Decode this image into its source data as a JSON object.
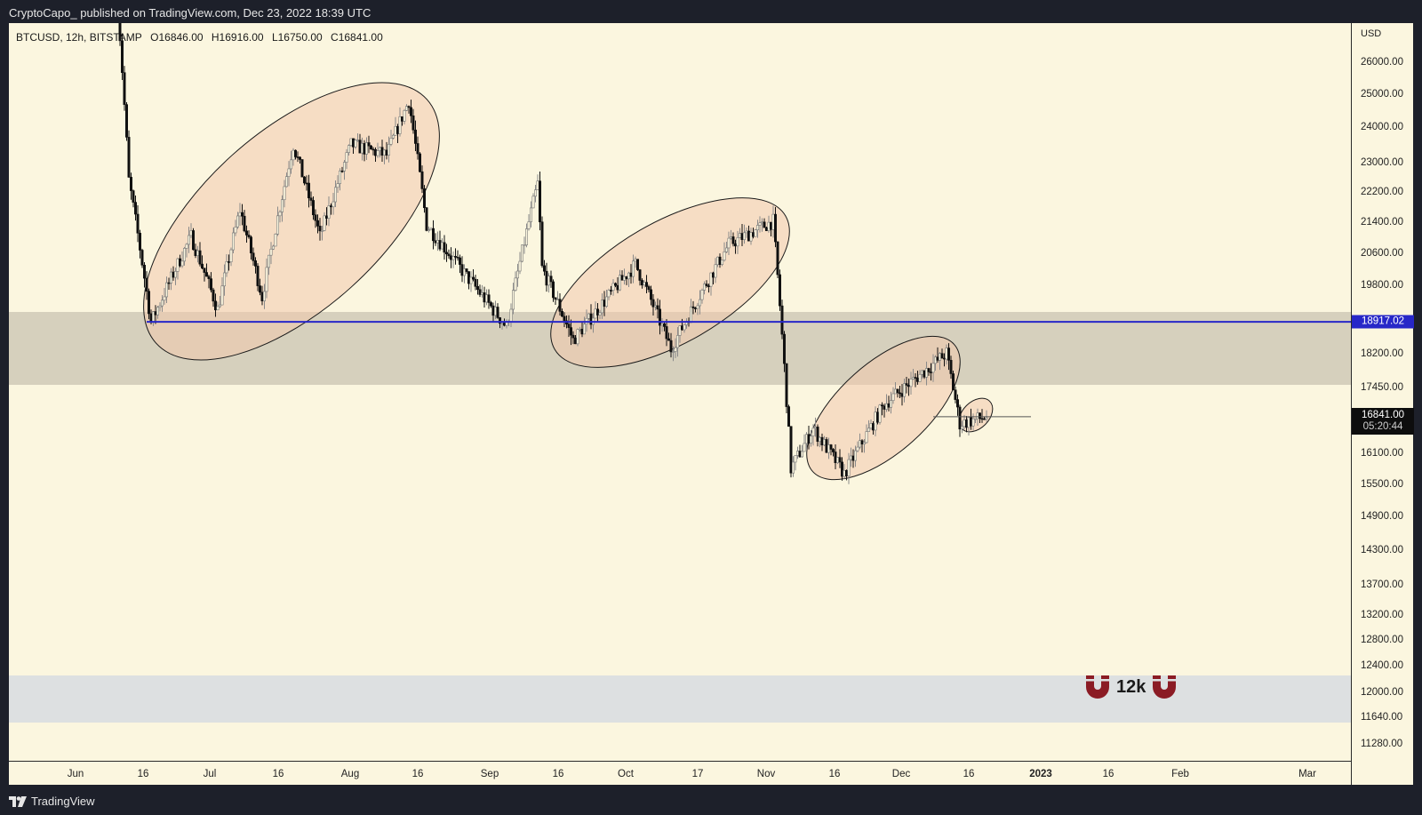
{
  "header": {
    "caption": "CryptoCapo_ published on TradingView.com, Dec 23, 2022 18:39 UTC"
  },
  "legend": {
    "symbol": "BTCUSD, 12h, BITSTAMP",
    "open": "O16846.00",
    "high": "H16916.00",
    "low": "L16750.00",
    "close": "C16841.00"
  },
  "price_axis": {
    "currency": "USD",
    "level_badge": "18917.02",
    "last_price": "16841.00",
    "countdown": "05:20:44"
  },
  "annotation": {
    "target_label": "12k",
    "icon": "magnet-icon"
  },
  "footer": {
    "brand": "TradingView"
  },
  "colors": {
    "background": "#fbf6df",
    "frame": "#1d202a",
    "level_line": "#2727c8",
    "support_zone": "#d6d0bd",
    "target_zone": "#dde0e1",
    "ellipse_fill": "#f7d9c4",
    "magnet": "#8b1b24"
  },
  "chart_data": {
    "type": "candlestick",
    "title": "BTCUSD, 12h, BITSTAMP",
    "xlabel": "",
    "ylabel": "USD",
    "y_ticks": [
      26000,
      25000,
      24000,
      23000,
      22200,
      21400,
      20600,
      19800,
      18917.02,
      18200,
      17450,
      16841,
      16100,
      15500,
      14900,
      14300,
      13700,
      13200,
      12800,
      12400,
      12000,
      11640,
      11280
    ],
    "y_tick_labels": [
      "26000.00",
      "25000.00",
      "24000.00",
      "23000.00",
      "22200.00",
      "21400.00",
      "20600.00",
      "19800.00",
      "18200.00",
      "17450.00",
      "16100.00",
      "15500.00",
      "14900.00",
      "14300.00",
      "13700.00",
      "13200.00",
      "12800.00",
      "12400.00",
      "12000.00",
      "11640.00",
      "11280.00"
    ],
    "x_tick_labels": [
      "Jun",
      "16",
      "Jul",
      "16",
      "Aug",
      "16",
      "Sep",
      "16",
      "Oct",
      "17",
      "Nov",
      "16",
      "Dec",
      "16",
      "2023",
      "16",
      "Feb",
      "Mar"
    ],
    "ylim": [
      11000,
      26700
    ],
    "scale": "log",
    "last_ohlc": {
      "open": 16846.0,
      "high": 16916.0,
      "low": 16750.0,
      "close": 16841.0
    },
    "horizontal_level": 18917.02,
    "support_zone": [
      17300,
      19100
    ],
    "target_zone": [
      11600,
      12200
    ],
    "target_label": "12k",
    "approx_path": [
      {
        "date": "2022-06-10",
        "close": 29000
      },
      {
        "date": "2022-06-13",
        "close": 22500
      },
      {
        "date": "2022-06-18",
        "close": 18900
      },
      {
        "date": "2022-06-27",
        "close": 21000
      },
      {
        "date": "2022-07-03",
        "close": 19200
      },
      {
        "date": "2022-07-08",
        "close": 21700
      },
      {
        "date": "2022-07-13",
        "close": 19500
      },
      {
        "date": "2022-07-20",
        "close": 23500
      },
      {
        "date": "2022-07-26",
        "close": 21000
      },
      {
        "date": "2022-08-02",
        "close": 23500
      },
      {
        "date": "2022-08-10",
        "close": 23200
      },
      {
        "date": "2022-08-15",
        "close": 24800
      },
      {
        "date": "2022-08-19",
        "close": 21300
      },
      {
        "date": "2022-08-28",
        "close": 20000
      },
      {
        "date": "2022-09-06",
        "close": 18800
      },
      {
        "date": "2022-09-13",
        "close": 22400
      },
      {
        "date": "2022-09-14",
        "close": 20200
      },
      {
        "date": "2022-09-21",
        "close": 18500
      },
      {
        "date": "2022-10-05",
        "close": 20300
      },
      {
        "date": "2022-10-13",
        "close": 18300
      },
      {
        "date": "2022-10-26",
        "close": 20800
      },
      {
        "date": "2022-11-05",
        "close": 21400
      },
      {
        "date": "2022-11-09",
        "close": 15800
      },
      {
        "date": "2022-11-14",
        "close": 16600
      },
      {
        "date": "2022-11-21",
        "close": 15700
      },
      {
        "date": "2022-11-30",
        "close": 17100
      },
      {
        "date": "2022-12-14",
        "close": 18200
      },
      {
        "date": "2022-12-17",
        "close": 16700
      },
      {
        "date": "2022-12-23",
        "close": 16841
      }
    ],
    "ellipses": [
      {
        "from": "2022-06-18",
        "to": "2022-08-19",
        "label": "range-up-1"
      },
      {
        "from": "2022-09-21",
        "to": "2022-11-08",
        "label": "range-up-2"
      },
      {
        "from": "2022-11-21",
        "to": "2022-12-15",
        "label": "range-up-3"
      },
      {
        "from": "2022-12-17",
        "to": "2022-12-23",
        "label": "current"
      }
    ]
  }
}
